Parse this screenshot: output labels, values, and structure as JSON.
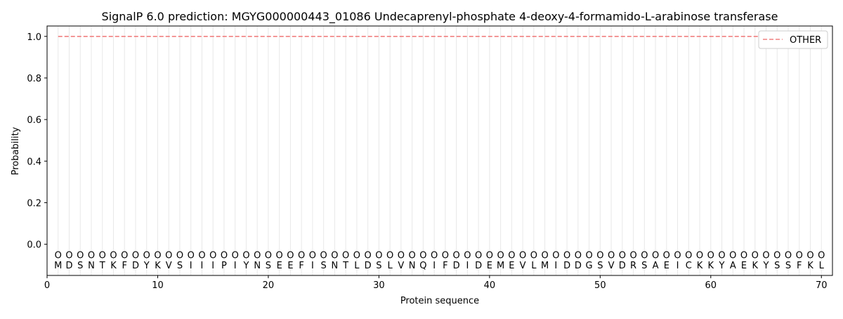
{
  "chart_data": {
    "type": "line",
    "title": "SignalP 6.0 prediction: MGYG000000443_01086 Undecaprenyl-phosphate 4-deoxy-4-formamido-L-arabinose transferase",
    "xlabel": "Protein sequence",
    "ylabel": "Probability",
    "xlim": [
      0,
      71
    ],
    "ylim": [
      -0.15,
      1.05
    ],
    "xticks": [
      0,
      10,
      20,
      30,
      40,
      50,
      60,
      70
    ],
    "yticks": [
      "0.0",
      "0.2",
      "0.4",
      "0.6",
      "0.8",
      "1.0"
    ],
    "legend_position": "top-right",
    "sequence": [
      "M",
      "D",
      "S",
      "N",
      "T",
      "K",
      "F",
      "D",
      "Y",
      "K",
      "V",
      "S",
      "I",
      "I",
      "I",
      "P",
      "I",
      "Y",
      "N",
      "S",
      "E",
      "E",
      "F",
      "I",
      "S",
      "N",
      "T",
      "L",
      "D",
      "S",
      "L",
      "V",
      "N",
      "Q",
      "I",
      "F",
      "D",
      "I",
      "D",
      "E",
      "M",
      "E",
      "V",
      "L",
      "M",
      "I",
      "D",
      "D",
      "G",
      "S",
      "V",
      "D",
      "R",
      "S",
      "A",
      "E",
      "I",
      "C",
      "K",
      "K",
      "Y",
      "A",
      "E",
      "K",
      "Y",
      "S",
      "S",
      "F",
      "K",
      "L"
    ],
    "predicted_label": "O",
    "series": [
      {
        "name": "OTHER",
        "color": "#f08080",
        "style": "dashed",
        "x_start": 1,
        "x_end": 70,
        "value": 1.0
      }
    ]
  }
}
